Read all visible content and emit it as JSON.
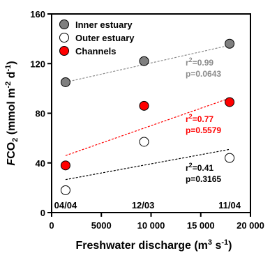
{
  "chart_data": {
    "type": "scatter",
    "xlabel_main": "Freshwater discharge (m",
    "xlabel_sup1": "3",
    "xlabel_mid": " s",
    "xlabel_sup2": "-1",
    "xlabel_end": ")",
    "ylabel_italic": "F",
    "ylabel_main": "CO",
    "ylabel_sub": "2",
    "ylabel_mid1": " (mmol m",
    "ylabel_sup1": "-2",
    "ylabel_mid2": " d",
    "ylabel_sup2": "-1",
    "ylabel_end": ")",
    "xlim": [
      0,
      20000
    ],
    "ylim": [
      0,
      160
    ],
    "x_ticks": [
      0,
      5000,
      10000,
      15000,
      20000
    ],
    "x_tick_labels": [
      "0",
      "5000",
      "10 000",
      "15 000",
      "20 000"
    ],
    "y_ticks": [
      0,
      40,
      80,
      120,
      160
    ],
    "y_tick_labels": [
      "0",
      "40",
      "80",
      "120",
      "160"
    ],
    "point_labels": [
      {
        "x": 1400,
        "text": "04/04"
      },
      {
        "x": 9200,
        "text": "12/03"
      },
      {
        "x": 17900,
        "text": "11/04"
      }
    ],
    "series": [
      {
        "name": "Inner estuary",
        "fill": "#7f7f7f",
        "line_color": "#8c8c8c",
        "x": [
          1400,
          9300,
          17900
        ],
        "y": [
          105,
          122,
          136
        ],
        "fit": [
          [
            0,
            102.5
          ],
          [
            20000,
            138.5
          ]
        ],
        "r2_prefix": "r",
        "r2_sup": "2",
        "r2_value": "=0.99",
        "p_text": "p=0.0643"
      },
      {
        "name": "Outer estuary",
        "fill": "#ffffff",
        "line_color": "#000000",
        "x": [
          1400,
          9300,
          17900
        ],
        "y": [
          18,
          57,
          44
        ],
        "fit": [
          [
            0,
            24.5
          ],
          [
            20000,
            54
          ]
        ],
        "r2_prefix": "r",
        "r2_sup": "2",
        "r2_value": "=0.41",
        "p_text": "p=0.3165"
      },
      {
        "name": "Channels",
        "fill": "#ff0000",
        "line_color": "#ff0000",
        "x": [
          1400,
          9300,
          17900
        ],
        "y": [
          38,
          86,
          89
        ],
        "fit": [
          [
            0,
            42
          ],
          [
            20000,
            98
          ]
        ],
        "r2_prefix": "r",
        "r2_sup": "2",
        "r2_value": "=0.77",
        "p_text": "p=0.5579"
      }
    ],
    "legend_position": "top-left",
    "grid": false
  }
}
